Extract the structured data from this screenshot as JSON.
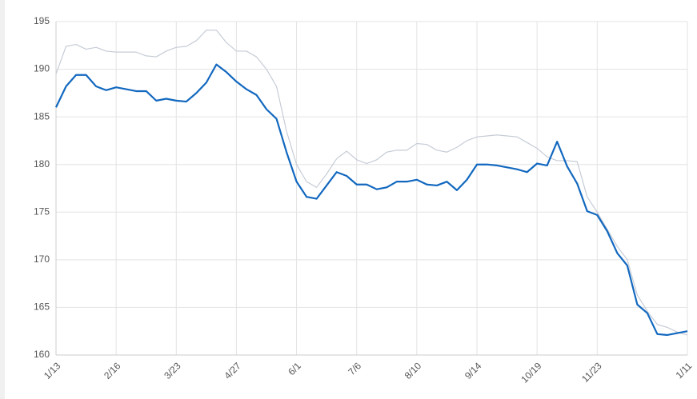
{
  "chart_data": {
    "type": "line",
    "categories": [
      "1/13",
      null,
      null,
      null,
      null,
      null,
      "2/16",
      null,
      null,
      null,
      null,
      null,
      "3/23",
      null,
      null,
      null,
      null,
      null,
      "4/27",
      null,
      null,
      null,
      null,
      null,
      "6/1",
      null,
      null,
      null,
      null,
      null,
      "7/6",
      null,
      null,
      null,
      null,
      null,
      "8/10",
      null,
      null,
      null,
      null,
      null,
      "9/14",
      null,
      null,
      null,
      null,
      null,
      "10/19",
      null,
      null,
      null,
      null,
      null,
      "11/23",
      null,
      null,
      null,
      null,
      null,
      null,
      null,
      null,
      "1/11"
    ],
    "series": [
      {
        "color": "#c6ccd6",
        "values": [
          189.5,
          192.4,
          192.6,
          192.1,
          192.3,
          191.9,
          191.8,
          191.8,
          191.8,
          191.4,
          191.3,
          191.9,
          192.3,
          192.4,
          193.0,
          194.1,
          194.1,
          192.8,
          191.9,
          191.9,
          191.3,
          190.0,
          188.2,
          183.5,
          180.0,
          178.2,
          177.6,
          179.0,
          180.6,
          181.4,
          180.5,
          180.1,
          180.5,
          181.3,
          181.5,
          181.5,
          182.2,
          182.1,
          181.5,
          181.3,
          181.8,
          182.5,
          182.9,
          183.0,
          183.1,
          183.0,
          182.9,
          182.3,
          181.7,
          180.8,
          180.4,
          180.4,
          180.3,
          176.6,
          175.0,
          173.2,
          171.4,
          170.0,
          166.3,
          164.6,
          163.2,
          162.9,
          162.4,
          162.1
        ]
      },
      {
        "color": "#1268bf",
        "values": [
          186.0,
          188.2,
          189.4,
          189.4,
          188.2,
          187.8,
          188.1,
          187.9,
          187.7,
          187.7,
          186.7,
          186.9,
          186.7,
          186.6,
          187.5,
          188.6,
          190.5,
          189.7,
          188.7,
          187.9,
          187.3,
          185.8,
          184.8,
          181.3,
          178.2,
          176.6,
          176.4,
          177.8,
          179.2,
          178.8,
          177.9,
          177.9,
          177.4,
          177.6,
          178.2,
          178.2,
          178.4,
          177.9,
          177.8,
          178.2,
          177.3,
          178.4,
          180.0,
          180.0,
          179.9,
          179.7,
          179.5,
          179.2,
          180.1,
          179.9,
          182.4,
          179.8,
          178.0,
          175.1,
          174.7,
          173.0,
          170.7,
          169.4,
          165.3,
          164.4,
          162.2,
          162.1,
          162.3,
          162.5
        ]
      }
    ],
    "ylim": [
      160,
      195
    ],
    "yticks": [
      160,
      165,
      170,
      175,
      180,
      185,
      190,
      195
    ],
    "grid": true
  }
}
